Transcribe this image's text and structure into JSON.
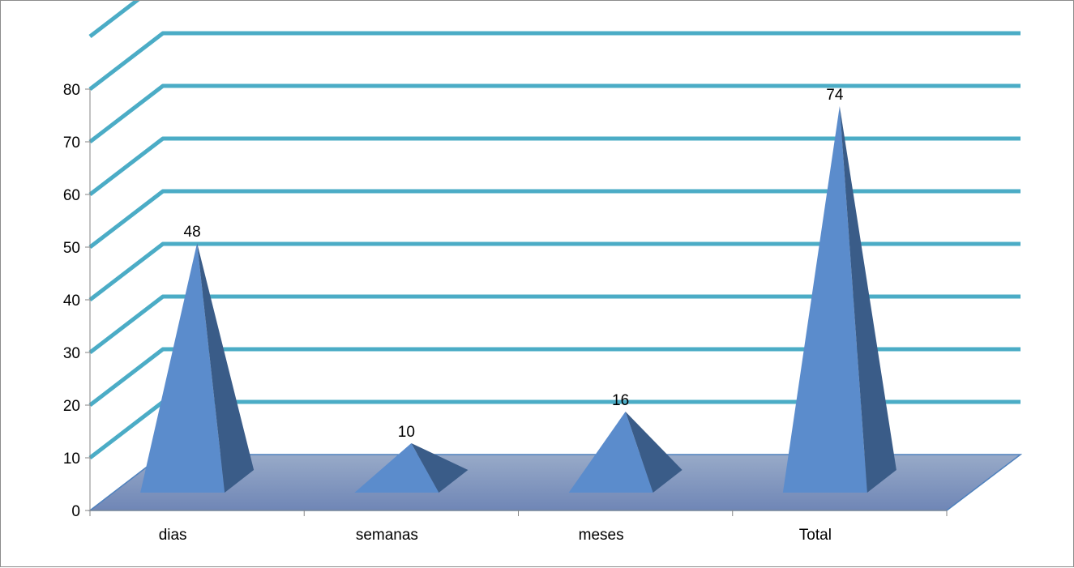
{
  "chart_data": {
    "type": "bar",
    "shape": "pyramid-3d",
    "categories": [
      "dias",
      "semanas",
      "meses",
      "Total"
    ],
    "values": [
      48,
      10,
      16,
      74
    ],
    "data_labels": [
      "48",
      "10",
      "16",
      "74"
    ],
    "title": "",
    "xlabel": "",
    "ylabel": "",
    "ylim": [
      0,
      80
    ],
    "ytick_step": 10,
    "yticks": [
      "0",
      "10",
      "20",
      "30",
      "40",
      "50",
      "60",
      "70",
      "80"
    ],
    "grid": true,
    "legend": "none",
    "colors": {
      "pyramid_front": "#5b8ccc",
      "pyramid_side": "#3a5c88",
      "gridline": "#4bacc6",
      "floor_top": "#98aac8",
      "floor_bottom": "#6f86b6",
      "floor_edge": "#4f81bd",
      "axis": "#868686"
    }
  }
}
